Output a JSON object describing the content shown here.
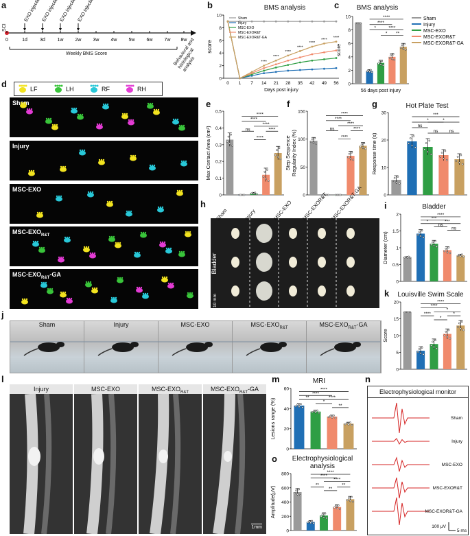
{
  "panels": {
    "a": {
      "label": "a",
      "start": "SCI",
      "injections": [
        "EXO injection",
        "EXO injection",
        "EXO injection",
        "EXO injection"
      ],
      "ticks": [
        "0",
        "1d",
        "3d",
        "1w",
        "2w",
        "3w",
        "4w",
        "5w",
        "6w",
        "7w",
        "8w"
      ],
      "weekly": "Weekly BMS Score",
      "behav": "Behavioral and histological analysis"
    },
    "b": {
      "label": "b"
    },
    "c": {
      "label": "c"
    },
    "d": {
      "label": "d",
      "legend": [
        "LF",
        "LH",
        "RF",
        "RH"
      ],
      "rows": [
        "Sham",
        "Injury",
        "MSC-EXO",
        "MSC-EXO",
        "MSC-EXO"
      ],
      "row_subs": [
        "",
        "",
        "",
        "R&T",
        "R&T"
      ],
      "row_suffix": [
        "",
        "",
        "",
        "",
        "-GA"
      ]
    },
    "e": {
      "label": "e"
    },
    "f": {
      "label": "f"
    },
    "g": {
      "label": "g"
    },
    "h": {
      "label": "h",
      "cols": [
        "Sham",
        "Injury",
        "MSC-EXO",
        "MSC-EXOR&T",
        "MSC-EXOR&T-GA"
      ],
      "side": "Bladder",
      "scale": "10 mm"
    },
    "i": {
      "label": "i"
    },
    "j": {
      "label": "j",
      "cols": [
        "Sham",
        "Injury",
        "MSC-EXO",
        "MSC-EXO",
        "MSC-EXO"
      ],
      "subs": [
        "",
        "",
        "",
        "R&T",
        "R&T"
      ],
      "suffix": [
        "",
        "",
        "",
        "",
        "-GA"
      ]
    },
    "k": {
      "label": "k"
    },
    "l": {
      "label": "l",
      "cols": [
        "Injury",
        "MSC-EXO",
        "MSC-EXO",
        "MSC-EXO"
      ],
      "subs": [
        "",
        "",
        "R&T",
        "R&T"
      ],
      "suffix": [
        "",
        "",
        "",
        "-GA"
      ],
      "scale": "1mm"
    },
    "m": {
      "label": "m"
    },
    "n": {
      "label": "n",
      "title": "Electrophysiological monitor",
      "traces": [
        "Sham",
        "Injury",
        "MSC-EXO",
        "MSC-EXOR&T",
        "MSC-EXOR&T-GA"
      ],
      "scale_v": "100 μV",
      "scale_t": "5 ms"
    },
    "o": {
      "label": "o"
    }
  },
  "groups": [
    "Sham",
    "Injury",
    "MSC-EXO",
    "MSC-EXOR&T",
    "MSC-EXOR&T-GA"
  ],
  "colors": {
    "sham": "#9a9a9a",
    "injury": "#1f6fb5",
    "exo": "#2f9e44",
    "rt": "#f08a6c",
    "ga": "#c8a061"
  },
  "chart_data": [
    {
      "id": "b",
      "type": "line",
      "title": "BMS analysis",
      "xlabel": "Days post injury",
      "ylabel": "score",
      "x": [
        0,
        1,
        7,
        14,
        21,
        28,
        35,
        42,
        49,
        56
      ],
      "ylim": [
        0,
        10
      ],
      "yticks": [
        0,
        2,
        4,
        6,
        8,
        10
      ],
      "series": [
        {
          "name": "Sham",
          "values": [
            9,
            9,
            9,
            9,
            9,
            9,
            9,
            9,
            9,
            9
          ]
        },
        {
          "name": "Injury",
          "values": [
            9,
            0,
            0.4,
            0.8,
            1.0,
            1.2,
            1.3,
            1.4,
            1.5,
            1.6
          ]
        },
        {
          "name": "MSC-EXO",
          "values": [
            9,
            0,
            0.6,
            1.2,
            1.7,
            2.1,
            2.5,
            2.8,
            3.0,
            3.2
          ]
        },
        {
          "name": "MSC-EXOR&T",
          "values": [
            9,
            0,
            0.8,
            1.6,
            2.2,
            2.8,
            3.3,
            3.8,
            4.1,
            4.4
          ]
        },
        {
          "name": "MSC-EXOR&T-GA",
          "values": [
            9,
            0,
            1.0,
            2.0,
            2.8,
            3.6,
            4.3,
            5.0,
            5.5,
            5.8
          ]
        }
      ],
      "sig": [
        "****",
        "****",
        "****",
        "****",
        "****",
        "****",
        "****"
      ]
    },
    {
      "id": "c",
      "type": "bar",
      "title": "BMS analysis",
      "xlabel": "56 days post injury",
      "ylabel": "score",
      "ylim": [
        0,
        10
      ],
      "yticks": [
        0,
        2,
        4,
        6,
        8,
        10
      ],
      "values": [
        9,
        1.9,
        3.1,
        4.0,
        5.5
      ],
      "errors": [
        0,
        0.2,
        0.4,
        0.5,
        0.5
      ],
      "legend": [
        "Sham",
        "Injury",
        "MSC-EXO",
        "MSC-EXOR&T",
        "MSC-EXOR&T-GA"
      ],
      "sig": [
        {
          "a": 1,
          "b": 4,
          "t": "****",
          "y": 9.6
        },
        {
          "a": 1,
          "b": 3,
          "t": "****",
          "y": 8.8
        },
        {
          "a": 1,
          "b": 2,
          "t": "*",
          "y": 8.0
        },
        {
          "a": 2,
          "b": 4,
          "t": "****",
          "y": 8.0
        },
        {
          "a": 2,
          "b": 3,
          "t": "*",
          "y": 7.2
        },
        {
          "a": 3,
          "b": 4,
          "t": "**",
          "y": 7.2
        }
      ]
    },
    {
      "id": "e",
      "type": "bar",
      "ylabel": "Max Contact Area (cm²)",
      "ylim": [
        0,
        0.5
      ],
      "yticks": [
        0,
        0.1,
        0.2,
        0.3,
        0.4,
        0.5
      ],
      "values": [
        0.33,
        0.0,
        0.01,
        0.12,
        0.25
      ],
      "errors": [
        0.04,
        0,
        0.005,
        0.04,
        0.04
      ],
      "sig": [
        {
          "a": 1,
          "b": 4,
          "t": "****",
          "y": 0.47
        },
        {
          "a": 1,
          "b": 3,
          "t": "****",
          "y": 0.44
        },
        {
          "a": 2,
          "b": 4,
          "t": "****",
          "y": 0.41
        },
        {
          "a": 3,
          "b": 4,
          "t": "****",
          "y": 0.38
        },
        {
          "a": 1,
          "b": 2,
          "t": "ns",
          "y": 0.38
        },
        {
          "a": 2,
          "b": 3,
          "t": "****",
          "y": 0.33
        }
      ]
    },
    {
      "id": "f",
      "type": "bar",
      "ylabel": "Step Sequence Regularity Index (%)",
      "ylim": [
        0,
        150
      ],
      "yticks": [
        0,
        50,
        100,
        150
      ],
      "values": [
        97,
        0,
        0,
        70,
        88
      ],
      "errors": [
        6,
        0,
        0,
        8,
        6
      ],
      "sig": [
        {
          "a": 1,
          "b": 4,
          "t": "****",
          "y": 142
        },
        {
          "a": 1,
          "b": 3,
          "t": "****",
          "y": 133
        },
        {
          "a": 2,
          "b": 4,
          "t": "****",
          "y": 124
        },
        {
          "a": 3,
          "b": 4,
          "t": "****",
          "y": 115
        },
        {
          "a": 1,
          "b": 2,
          "t": "ns",
          "y": 115
        },
        {
          "a": 2,
          "b": 3,
          "t": "****",
          "y": 100
        }
      ]
    },
    {
      "id": "g",
      "type": "bar",
      "title": "Hot Plate Test",
      "ylabel": "Response time (s)",
      "ylim": [
        0,
        30
      ],
      "yticks": [
        0,
        10,
        20,
        30
      ],
      "values": [
        5.5,
        19.5,
        17.5,
        14.5,
        13
      ],
      "errors": [
        1.5,
        2.5,
        3,
        2,
        2
      ],
      "sig": [
        {
          "a": 1,
          "b": 4,
          "t": "***",
          "y": 28.5
        },
        {
          "a": 1,
          "b": 3,
          "t": "*",
          "y": 26.5
        },
        {
          "a": 2,
          "b": 4,
          "t": "*",
          "y": 26.5
        },
        {
          "a": 1,
          "b": 2,
          "t": "ns",
          "y": 24.5
        },
        {
          "a": 2,
          "b": 3,
          "t": "ns",
          "y": 22.5
        },
        {
          "a": 3,
          "b": 4,
          "t": "ns",
          "y": 22.5
        }
      ]
    },
    {
      "id": "i",
      "type": "bar",
      "title": "Bladder",
      "ylabel": "Diameter (cm)",
      "ylim": [
        0,
        2.0
      ],
      "yticks": [
        0,
        0.5,
        1.0,
        1.5,
        2.0
      ],
      "values": [
        0.72,
        1.42,
        1.12,
        0.93,
        0.77
      ],
      "errors": [
        0.02,
        0.12,
        0.1,
        0.1,
        0.04
      ],
      "sig": [
        {
          "a": 1,
          "b": 4,
          "t": "****",
          "y": 1.92
        },
        {
          "a": 1,
          "b": 3,
          "t": "***",
          "y": 1.82
        },
        {
          "a": 1,
          "b": 2,
          "t": "*",
          "y": 1.72
        },
        {
          "a": 2,
          "b": 4,
          "t": "***",
          "y": 1.72
        },
        {
          "a": 2,
          "b": 3,
          "t": "ns",
          "y": 1.62
        },
        {
          "a": 3,
          "b": 4,
          "t": "ns",
          "y": 1.52
        }
      ]
    },
    {
      "id": "k",
      "type": "bar",
      "title": "Louisville Swim Scale",
      "ylabel": "Score",
      "ylim": [
        0,
        20
      ],
      "yticks": [
        0,
        5,
        10,
        15,
        20
      ],
      "values": [
        17,
        5.5,
        7.5,
        10.5,
        13
      ],
      "errors": [
        0,
        1.2,
        1.5,
        1.5,
        1.5
      ],
      "sig": [
        {
          "a": 1,
          "b": 4,
          "t": "****",
          "y": 19.5
        },
        {
          "a": 1,
          "b": 3,
          "t": "****",
          "y": 18.3
        },
        {
          "a": 2,
          "b": 4,
          "t": "*",
          "y": 17.1
        },
        {
          "a": 1,
          "b": 2,
          "t": "****",
          "y": 15.9
        },
        {
          "a": 3,
          "b": 4,
          "t": "*",
          "y": 15.9
        },
        {
          "a": 2,
          "b": 3,
          "t": "*",
          "y": 14.7
        }
      ]
    },
    {
      "id": "m",
      "type": "bar",
      "title": "MRI",
      "ylabel": "Lesions range (%)",
      "ylim": [
        0,
        60
      ],
      "yticks": [
        0,
        20,
        40,
        60
      ],
      "values": [
        43,
        37,
        32,
        25
      ],
      "errors": [
        2,
        1.5,
        1.5,
        1.5
      ],
      "groups": [
        1,
        2,
        3,
        4
      ],
      "sig": [
        {
          "a": 0,
          "b": 3,
          "t": "****",
          "y": 57
        },
        {
          "a": 0,
          "b": 2,
          "t": "****",
          "y": 53
        },
        {
          "a": 0,
          "b": 1,
          "t": "**",
          "y": 49
        },
        {
          "a": 1,
          "b": 3,
          "t": "****",
          "y": 49
        },
        {
          "a": 1,
          "b": 2,
          "t": "*",
          "y": 45
        },
        {
          "a": 2,
          "b": 3,
          "t": "**",
          "y": 41
        }
      ]
    },
    {
      "id": "o",
      "type": "bar",
      "title": "Electrophysiological analysis",
      "ylabel": "Amplitude(μV)",
      "ylim": [
        0,
        800
      ],
      "yticks": [
        0,
        200,
        400,
        600,
        800
      ],
      "values": [
        540,
        120,
        210,
        330,
        440
      ],
      "errors": [
        50,
        20,
        40,
        30,
        40
      ],
      "sig": [
        {
          "a": 1,
          "b": 4,
          "t": "****",
          "y": 790
        },
        {
          "a": 1,
          "b": 3,
          "t": "****",
          "y": 740
        },
        {
          "a": 2,
          "b": 4,
          "t": "****",
          "y": 690
        },
        {
          "a": 1,
          "b": 2,
          "t": "**",
          "y": 610
        },
        {
          "a": 3,
          "b": 4,
          "t": "**",
          "y": 610
        },
        {
          "a": 2,
          "b": 3,
          "t": "**",
          "y": 560
        }
      ]
    }
  ]
}
